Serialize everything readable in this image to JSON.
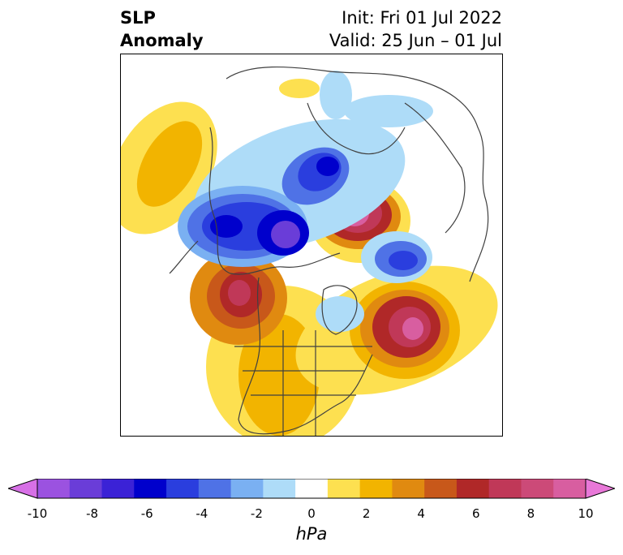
{
  "title": {
    "left_line1": "SLP",
    "left_line2": "Anomaly",
    "right_line1": "Init: Fri 01 Jul 2022",
    "right_line2": "Valid: 25 Jun – 01 Jul"
  },
  "colorbar": {
    "unit": "hPa",
    "ticks": [
      "-10",
      "-8",
      "-6",
      "-4",
      "-2",
      "0",
      "2",
      "4",
      "6",
      "8",
      "10"
    ],
    "colors": [
      "#d770e6",
      "#9b52e0",
      "#6a3dd8",
      "#3b22d6",
      "#0000cc",
      "#2a3ede",
      "#4f72e6",
      "#7ab0f2",
      "#aedcf8",
      "#ffffff",
      "#fde050",
      "#f2b400",
      "#e08a10",
      "#c8581a",
      "#b02828",
      "#c03858",
      "#cc4a78",
      "#d85ea0",
      "#e878d8"
    ]
  }
}
